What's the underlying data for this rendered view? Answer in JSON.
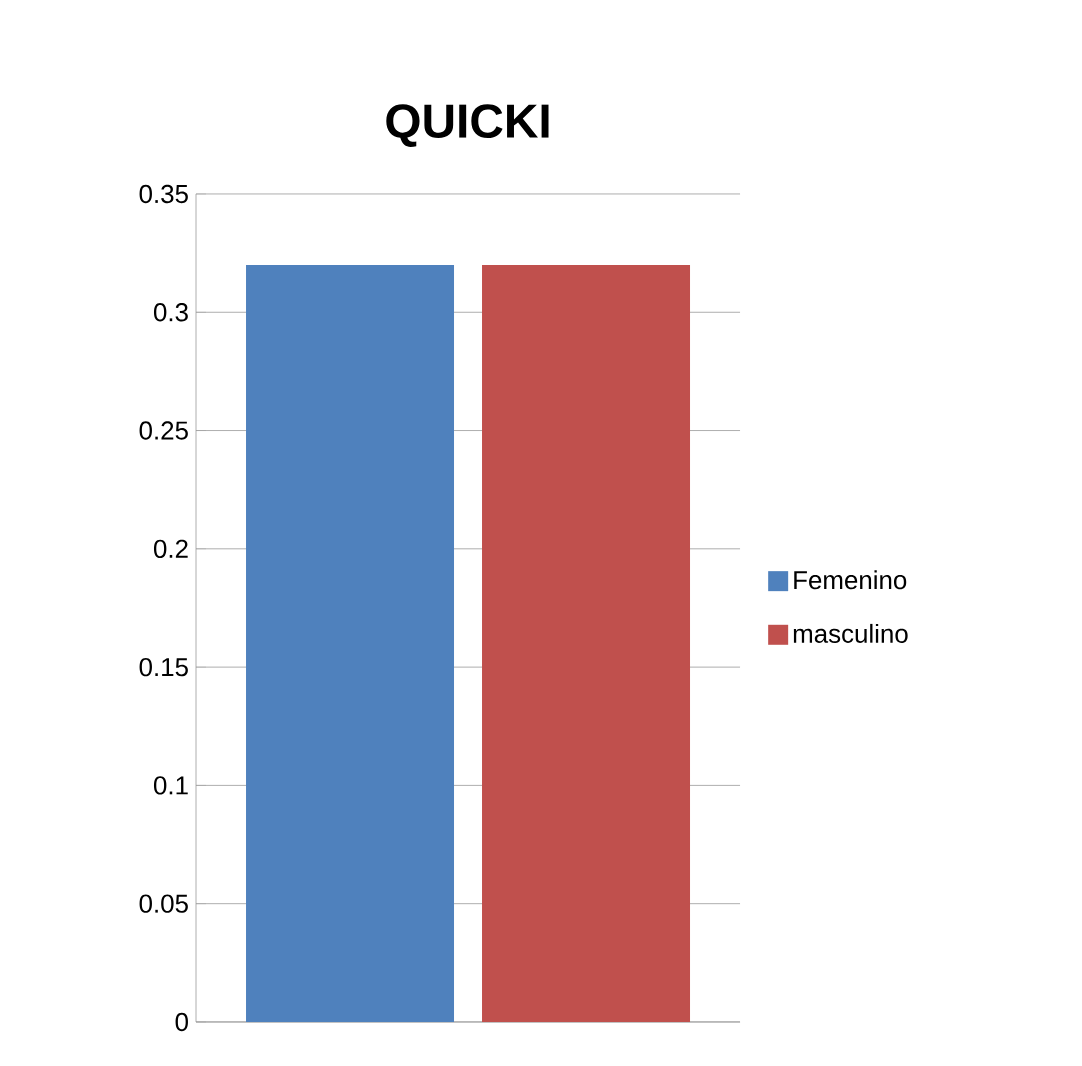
{
  "chart_data": {
    "type": "bar",
    "title": "QUICKI",
    "categories": [
      null
    ],
    "series": [
      {
        "name": "Femenino",
        "color": "#4f81bd",
        "values": [
          0.32
        ]
      },
      {
        "name": "masculino",
        "color": "#c0504d",
        "values": [
          0.32
        ]
      }
    ],
    "ylim": [
      0,
      0.35
    ],
    "yticks": [
      0,
      0.05,
      0.1,
      0.15,
      0.2,
      0.25,
      0.3,
      0.35
    ],
    "grid": "y",
    "legend": "right"
  }
}
